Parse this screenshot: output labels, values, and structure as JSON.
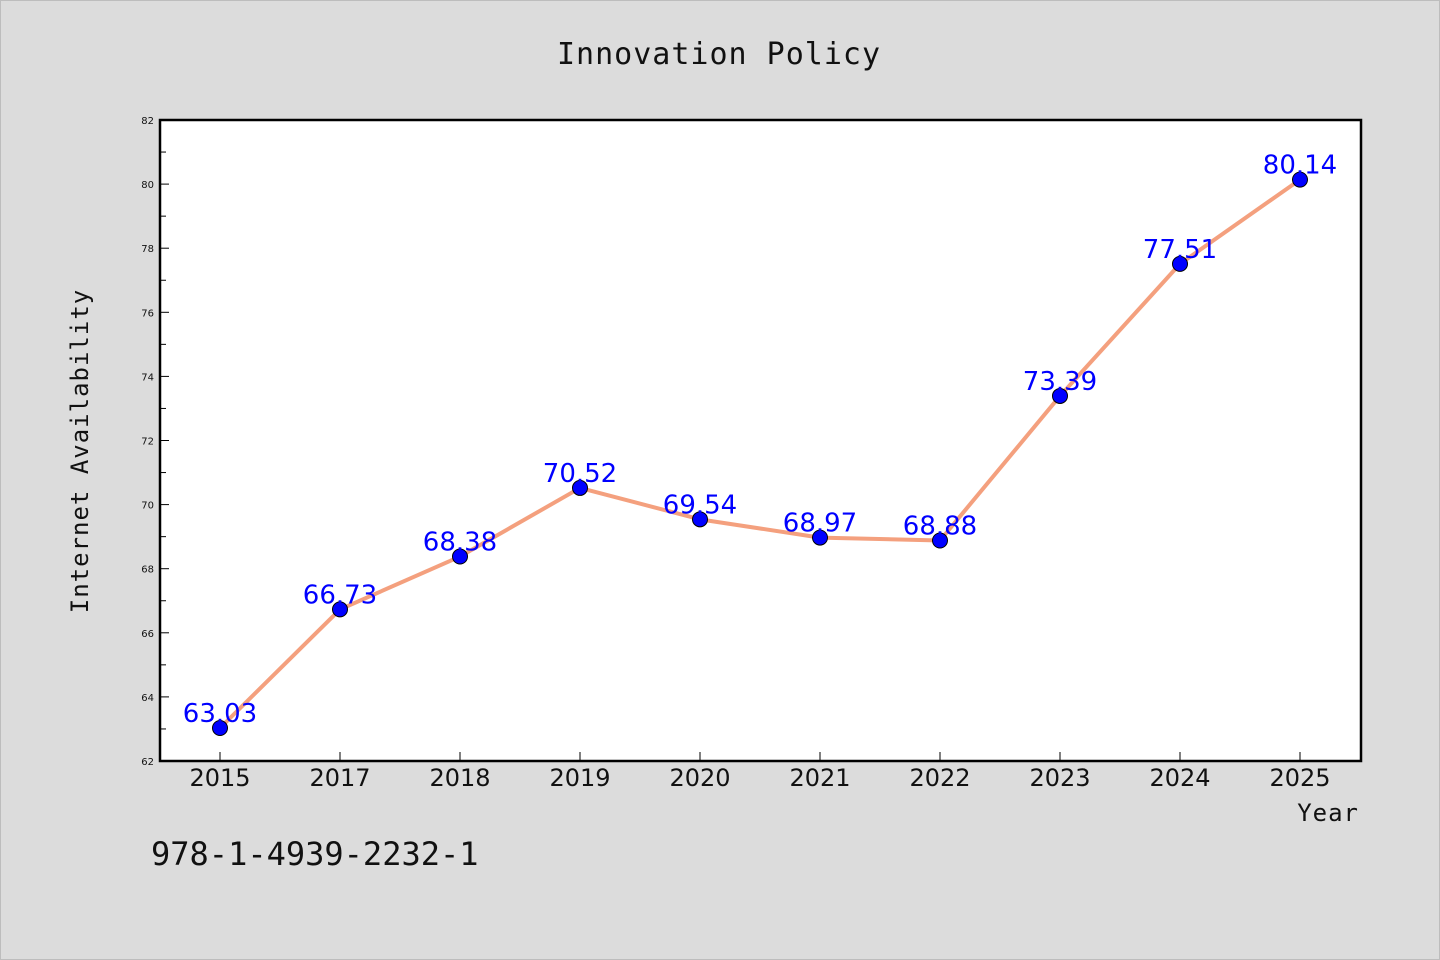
{
  "chart_data": {
    "type": "line",
    "title": "Innovation Policy",
    "xlabel": "Year",
    "ylabel": "Internet Availability",
    "categories": [
      "2015",
      "2017",
      "2018",
      "2019",
      "2020",
      "2021",
      "2022",
      "2023",
      "2024",
      "2025"
    ],
    "series": [
      {
        "values": [
          63.03,
          66.73,
          68.38,
          70.52,
          69.54,
          68.97,
          68.88,
          73.39,
          77.51,
          80.14
        ],
        "line_color": "#f4a07e",
        "marker_color": "#0000ff"
      }
    ],
    "data_labels": [
      "63.03",
      "66.73",
      "68.38",
      "70.52",
      "69.54",
      "68.97",
      "68.88",
      "73.39",
      "77.51",
      "80.14"
    ],
    "data_label_color": "#0000ff",
    "ylim": [
      62,
      82
    ],
    "yticks": [
      "62",
      "64",
      "66",
      "68",
      "70",
      "72",
      "74",
      "76",
      "78",
      "80",
      "82"
    ],
    "grid": false,
    "legend": "none"
  },
  "footer": {
    "code": "978-1-4939-2232-1"
  }
}
